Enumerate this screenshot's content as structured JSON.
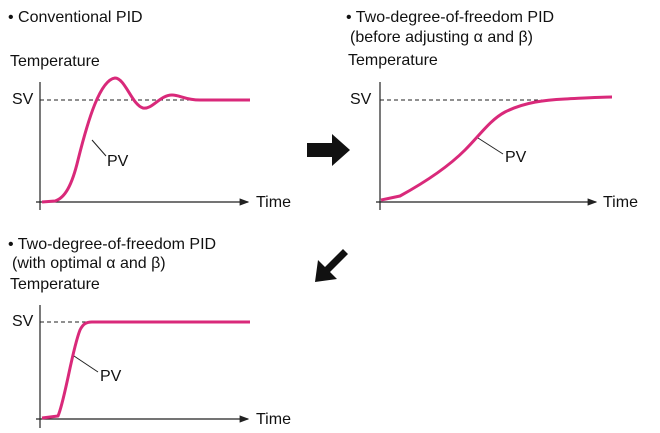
{
  "panels": [
    {
      "title": [
        "• Conventional PID"
      ],
      "y_label": "Temperature",
      "sv": "SV",
      "pv": "PV",
      "x_label": "Time"
    },
    {
      "title": [
        "• Two-degree-of-freedom PID",
        "(before adjusting α and β)"
      ],
      "y_label": "Temperature",
      "sv": "SV",
      "pv": "PV",
      "x_label": "Time"
    },
    {
      "title": [
        "• Two-degree-of-freedom PID",
        "(with optimal α and β)"
      ],
      "y_label": "Temperature",
      "sv": "SV",
      "pv": "PV",
      "x_label": "Time"
    }
  ]
}
